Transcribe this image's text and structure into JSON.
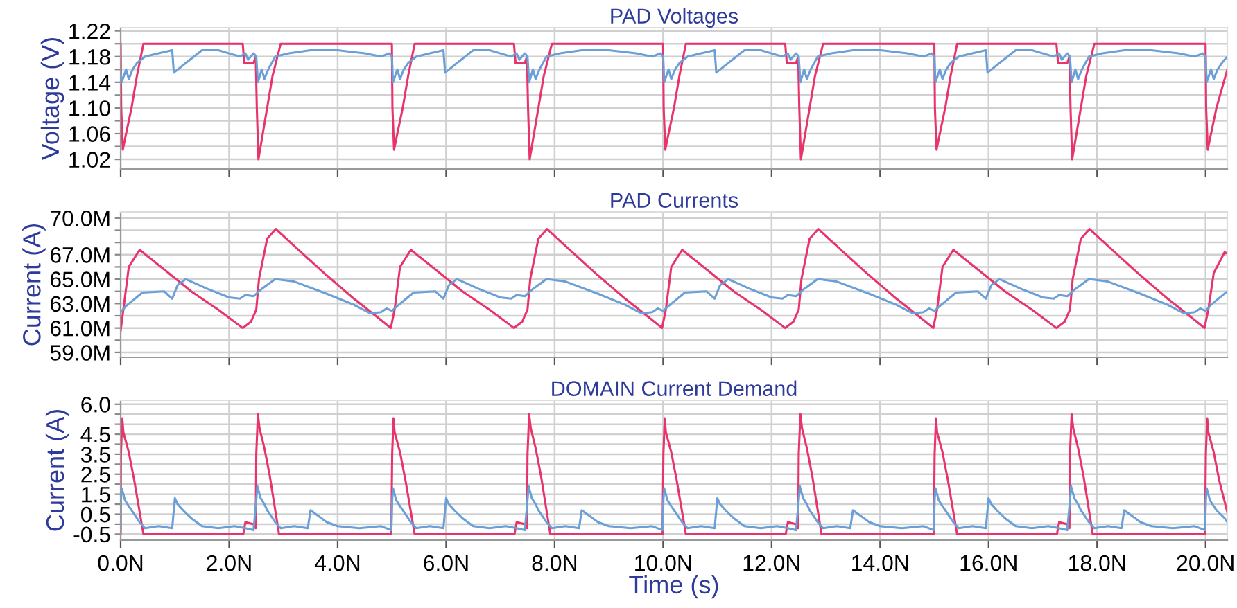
{
  "chart_data": [
    {
      "type": "line",
      "title": "PAD Voltages",
      "ylabel": "Voltage (V)",
      "xlim": [
        0,
        20.4
      ],
      "ylim": [
        1.005,
        1.225
      ],
      "grid": true,
      "tick_labels": "y",
      "line_style": "solid",
      "xticks": [
        {
          "value": 0,
          "label": null
        },
        {
          "value": 2,
          "label": null
        },
        {
          "value": 4,
          "label": null
        },
        {
          "value": 6,
          "label": null
        },
        {
          "value": 8,
          "label": null
        },
        {
          "value": 10,
          "label": null
        },
        {
          "value": 12,
          "label": null
        },
        {
          "value": 14,
          "label": null
        },
        {
          "value": 16,
          "label": null
        },
        {
          "value": 18,
          "label": null
        },
        {
          "value": 20,
          "label": null
        }
      ],
      "yticks": [
        {
          "value": 1.02,
          "label": "1.02"
        },
        {
          "value": 1.04,
          "label": null
        },
        {
          "value": 1.06,
          "label": "1.06"
        },
        {
          "value": 1.08,
          "label": null
        },
        {
          "value": 1.1,
          "label": "1.10"
        },
        {
          "value": 1.12,
          "label": null
        },
        {
          "value": 1.14,
          "label": "1.14"
        },
        {
          "value": 1.16,
          "label": null
        },
        {
          "value": 1.18,
          "label": "1.18"
        },
        {
          "value": 1.2,
          "label": null
        },
        {
          "value": 1.22,
          "label": "1.22"
        }
      ],
      "series": [
        {
          "color": "#e8336b",
          "x": [
            0,
            0.01,
            0.04,
            0.1,
            0.2,
            0.3,
            0.42,
            2.25,
            2.28,
            2.45,
            2.49,
            2.51,
            2.54,
            2.6,
            2.7,
            2.8,
            2.95,
            4.98,
            5,
            5.01,
            5.04,
            5.1,
            5.2,
            5.3,
            5.42,
            7.25,
            7.28,
            7.45,
            7.49,
            7.51,
            7.54,
            7.6,
            7.7,
            7.8,
            7.95,
            9.98,
            10,
            10.01,
            10.04,
            10.1,
            10.2,
            10.3,
            10.42,
            12.25,
            12.28,
            12.45,
            12.49,
            12.51,
            12.54,
            12.6,
            12.7,
            12.8,
            12.95,
            14.98,
            15,
            15.01,
            15.04,
            15.1,
            15.2,
            15.3,
            15.42,
            17.25,
            17.28,
            17.45,
            17.49,
            17.51,
            17.54,
            17.6,
            17.7,
            17.8,
            17.95,
            19.98,
            20,
            20.01,
            20.04,
            20.1,
            20.2,
            20.3,
            20.4
          ],
          "values": [
            1.2,
            1.1,
            1.035,
            1.06,
            1.1,
            1.15,
            1.2,
            1.2,
            1.17,
            1.17,
            1.18,
            1.1,
            1.02,
            1.05,
            1.1,
            1.15,
            1.2,
            1.2,
            1.2,
            1.1,
            1.035,
            1.06,
            1.1,
            1.15,
            1.2,
            1.2,
            1.17,
            1.17,
            1.18,
            1.1,
            1.02,
            1.05,
            1.1,
            1.15,
            1.2,
            1.2,
            1.2,
            1.1,
            1.035,
            1.06,
            1.1,
            1.15,
            1.2,
            1.2,
            1.17,
            1.17,
            1.18,
            1.1,
            1.02,
            1.05,
            1.1,
            1.15,
            1.2,
            1.2,
            1.2,
            1.1,
            1.035,
            1.06,
            1.1,
            1.15,
            1.2,
            1.2,
            1.17,
            1.17,
            1.18,
            1.1,
            1.02,
            1.05,
            1.1,
            1.15,
            1.2,
            1.2,
            1.2,
            1.1,
            1.035,
            1.06,
            1.1,
            1.13,
            1.16
          ]
        },
        {
          "color": "#6a9fd8",
          "x": [
            0,
            0.02,
            0.1,
            0.15,
            0.22,
            0.3,
            0.45,
            0.7,
            0.95,
            0.98,
            1.2,
            1.5,
            1.8,
            2.0,
            2.2,
            2.3,
            2.35,
            2.45,
            2.5,
            2.53,
            2.6,
            2.65,
            2.72,
            2.85,
            3.1,
            3.5,
            4.0,
            4.5,
            4.8,
            4.95,
            5,
            5.02,
            5.1,
            5.15,
            5.22,
            5.3,
            5.45,
            5.7,
            5.95,
            5.98,
            6.2,
            6.5,
            6.8,
            7.0,
            7.2,
            7.3,
            7.35,
            7.45,
            7.5,
            7.53,
            7.6,
            7.65,
            7.72,
            7.85,
            8.1,
            8.5,
            9.0,
            9.5,
            9.8,
            9.95,
            10,
            10.02,
            10.1,
            10.15,
            10.22,
            10.3,
            10.45,
            10.7,
            10.95,
            10.98,
            11.2,
            11.5,
            11.8,
            12.0,
            12.2,
            12.3,
            12.35,
            12.45,
            12.5,
            12.53,
            12.6,
            12.65,
            12.72,
            12.85,
            13.1,
            13.5,
            14.0,
            14.5,
            14.8,
            14.95,
            15,
            15.02,
            15.1,
            15.15,
            15.22,
            15.3,
            15.45,
            15.7,
            15.95,
            15.98,
            16.2,
            16.5,
            16.8,
            17.0,
            17.2,
            17.3,
            17.35,
            17.45,
            17.5,
            17.53,
            17.6,
            17.65,
            17.72,
            17.85,
            18.1,
            18.5,
            19.0,
            19.5,
            19.8,
            19.95,
            20,
            20.02,
            20.1,
            20.15,
            20.22,
            20.3,
            20.4
          ],
          "values": [
            1.16,
            1.14,
            1.16,
            1.145,
            1.16,
            1.17,
            1.18,
            1.185,
            1.19,
            1.155,
            1.17,
            1.19,
            1.19,
            1.185,
            1.18,
            1.185,
            1.175,
            1.185,
            1.18,
            1.14,
            1.16,
            1.145,
            1.16,
            1.18,
            1.185,
            1.19,
            1.19,
            1.185,
            1.18,
            1.185,
            1.18,
            1.14,
            1.16,
            1.145,
            1.16,
            1.17,
            1.18,
            1.185,
            1.19,
            1.155,
            1.17,
            1.19,
            1.19,
            1.185,
            1.18,
            1.185,
            1.175,
            1.185,
            1.18,
            1.14,
            1.16,
            1.145,
            1.16,
            1.18,
            1.185,
            1.19,
            1.19,
            1.185,
            1.18,
            1.185,
            1.18,
            1.14,
            1.16,
            1.145,
            1.16,
            1.17,
            1.18,
            1.185,
            1.19,
            1.155,
            1.17,
            1.19,
            1.19,
            1.185,
            1.18,
            1.185,
            1.175,
            1.185,
            1.18,
            1.14,
            1.16,
            1.145,
            1.16,
            1.18,
            1.185,
            1.19,
            1.19,
            1.185,
            1.18,
            1.185,
            1.18,
            1.14,
            1.16,
            1.145,
            1.16,
            1.17,
            1.18,
            1.185,
            1.19,
            1.155,
            1.17,
            1.19,
            1.19,
            1.185,
            1.18,
            1.185,
            1.175,
            1.185,
            1.18,
            1.14,
            1.16,
            1.145,
            1.16,
            1.18,
            1.185,
            1.19,
            1.19,
            1.185,
            1.18,
            1.185,
            1.18,
            1.14,
            1.16,
            1.145,
            1.16,
            1.17,
            1.18
          ]
        }
      ]
    },
    {
      "type": "line",
      "title": "PAD Currents",
      "ylabel": "Current (A)",
      "xlim": [
        0,
        20.4
      ],
      "ylim": [
        58.6,
        70.5
      ],
      "grid": true,
      "tick_labels": "y",
      "line_style": "solid",
      "xticks": [
        {
          "value": 0,
          "label": null
        },
        {
          "value": 2,
          "label": null
        },
        {
          "value": 4,
          "label": null
        },
        {
          "value": 6,
          "label": null
        },
        {
          "value": 8,
          "label": null
        },
        {
          "value": 10,
          "label": null
        },
        {
          "value": 12,
          "label": null
        },
        {
          "value": 14,
          "label": null
        },
        {
          "value": 16,
          "label": null
        },
        {
          "value": 18,
          "label": null
        },
        {
          "value": 20,
          "label": null
        }
      ],
      "yticks": [
        {
          "value": 59,
          "label": "59.0M"
        },
        {
          "value": 60,
          "label": null
        },
        {
          "value": 61,
          "label": "61.0M"
        },
        {
          "value": 62,
          "label": null
        },
        {
          "value": 63,
          "label": "63.0M"
        },
        {
          "value": 64,
          "label": null
        },
        {
          "value": 65,
          "label": "65.0M"
        },
        {
          "value": 66,
          "label": null
        },
        {
          "value": 67,
          "label": "67.0M"
        },
        {
          "value": 68,
          "label": null
        },
        {
          "value": 69,
          "label": null
        },
        {
          "value": 70,
          "label": "70.0M"
        }
      ],
      "series": [
        {
          "color": "#e8336b",
          "x": [
            0,
            0.05,
            0.15,
            0.35,
            0.8,
            1.3,
            1.8,
            2.25,
            2.4,
            2.5,
            2.55,
            2.7,
            2.86,
            3.3,
            3.8,
            4.3,
            4.7,
            4.98,
            5.05,
            5.15,
            5.35,
            5.8,
            6.3,
            6.8,
            7.25,
            7.4,
            7.5,
            7.55,
            7.7,
            7.86,
            8.3,
            8.8,
            9.3,
            9.7,
            9.98,
            10.05,
            10.15,
            10.35,
            10.8,
            11.3,
            11.8,
            12.25,
            12.4,
            12.5,
            12.55,
            12.7,
            12.86,
            13.3,
            13.8,
            14.3,
            14.7,
            14.98,
            15.05,
            15.15,
            15.35,
            15.8,
            16.3,
            16.8,
            17.25,
            17.4,
            17.5,
            17.55,
            17.7,
            17.86,
            18.3,
            18.8,
            19.3,
            19.7,
            19.98,
            20.05,
            20.15,
            20.35,
            20.4
          ],
          "values": [
            60.8,
            62.5,
            66.0,
            67.4,
            65.8,
            64.0,
            62.5,
            61.0,
            61.5,
            62.5,
            65.0,
            68.3,
            69.1,
            67.3,
            65.3,
            63.4,
            62.0,
            61.0,
            62.5,
            66.0,
            67.4,
            65.8,
            64.0,
            62.5,
            61.0,
            61.5,
            62.5,
            65.0,
            68.3,
            69.1,
            67.3,
            65.3,
            63.4,
            62.0,
            61.0,
            62.5,
            66.0,
            67.4,
            65.8,
            64.0,
            62.5,
            61.0,
            61.5,
            62.5,
            65.0,
            68.3,
            69.1,
            67.3,
            65.3,
            63.4,
            62.0,
            61.0,
            62.5,
            66.0,
            67.4,
            65.8,
            64.0,
            62.5,
            61.0,
            61.5,
            62.5,
            65.0,
            68.3,
            69.1,
            67.3,
            65.3,
            63.4,
            62.0,
            61.0,
            62.5,
            65.5,
            67.2,
            67.1
          ]
        },
        {
          "color": "#6a9fd8",
          "x": [
            0,
            0.1,
            0.4,
            0.8,
            0.95,
            1.05,
            1.2,
            1.6,
            2.0,
            2.2,
            2.3,
            2.45,
            2.6,
            2.85,
            3.2,
            3.8,
            4.3,
            4.6,
            4.8,
            4.9,
            5,
            5.1,
            5.4,
            5.8,
            5.95,
            6.05,
            6.2,
            6.6,
            7.0,
            7.2,
            7.3,
            7.45,
            7.6,
            7.85,
            8.2,
            8.8,
            9.3,
            9.6,
            9.8,
            9.9,
            10,
            10.1,
            10.4,
            10.8,
            10.95,
            11.05,
            11.2,
            11.6,
            12.0,
            12.2,
            12.3,
            12.45,
            12.6,
            12.85,
            13.2,
            13.8,
            14.3,
            14.6,
            14.8,
            14.9,
            15,
            15.1,
            15.4,
            15.8,
            15.95,
            16.05,
            16.2,
            16.6,
            17.0,
            17.2,
            17.3,
            17.45,
            17.6,
            17.85,
            18.2,
            18.8,
            19.3,
            19.6,
            19.8,
            19.9,
            20,
            20.1,
            20.4
          ],
          "values": [
            62.3,
            62.8,
            63.9,
            64.0,
            63.4,
            64.5,
            65.0,
            64.2,
            63.5,
            63.4,
            63.7,
            63.6,
            64.2,
            65.0,
            64.8,
            63.8,
            62.9,
            62.2,
            62.3,
            62.6,
            62.4,
            62.8,
            63.9,
            64.0,
            63.4,
            64.5,
            65.0,
            64.2,
            63.5,
            63.4,
            63.7,
            63.6,
            64.2,
            65.0,
            64.8,
            63.8,
            62.9,
            62.2,
            62.3,
            62.6,
            62.4,
            62.8,
            63.9,
            64.0,
            63.4,
            64.5,
            65.0,
            64.2,
            63.5,
            63.4,
            63.7,
            63.6,
            64.2,
            65.0,
            64.8,
            63.8,
            62.9,
            62.2,
            62.3,
            62.6,
            62.4,
            62.8,
            63.9,
            64.0,
            63.4,
            64.5,
            65.0,
            64.2,
            63.5,
            63.4,
            63.7,
            63.6,
            64.2,
            65.0,
            64.8,
            63.8,
            62.9,
            62.2,
            62.3,
            62.6,
            62.4,
            62.9,
            64.0
          ]
        }
      ]
    },
    {
      "type": "line",
      "title": "DOMAIN Current Demand",
      "ylabel": "Current (A)",
      "xlabel": "Time (s)",
      "xlim": [
        0,
        20.4
      ],
      "ylim": [
        -0.8,
        6.2
      ],
      "grid": true,
      "line_style": "solid",
      "xticks": [
        {
          "value": 0,
          "label": "0.0N"
        },
        {
          "value": 2,
          "label": "2.0N"
        },
        {
          "value": 4,
          "label": "4.0N"
        },
        {
          "value": 6,
          "label": "6.0N"
        },
        {
          "value": 8,
          "label": "8.0N"
        },
        {
          "value": 10,
          "label": "10.0N"
        },
        {
          "value": 12,
          "label": "12.0N"
        },
        {
          "value": 14,
          "label": "14.0N"
        },
        {
          "value": 16,
          "label": "16.0N"
        },
        {
          "value": 18,
          "label": "18.0N"
        },
        {
          "value": 20,
          "label": "20.0N"
        }
      ],
      "yticks": [
        {
          "value": -0.5,
          "label": "-0.5"
        },
        {
          "value": 0,
          "label": null
        },
        {
          "value": 0.5,
          "label": "0.5"
        },
        {
          "value": 1,
          "label": null
        },
        {
          "value": 1.5,
          "label": "1.5"
        },
        {
          "value": 2,
          "label": null
        },
        {
          "value": 2.5,
          "label": "2.5"
        },
        {
          "value": 3,
          "label": null
        },
        {
          "value": 3.5,
          "label": "3.5"
        },
        {
          "value": 4,
          "label": null
        },
        {
          "value": 4.5,
          "label": "4.5"
        },
        {
          "value": 5,
          "label": null
        },
        {
          "value": 5.5,
          "label": null
        },
        {
          "value": 6,
          "label": "6.0"
        }
      ],
      "series": [
        {
          "color": "#e8336b",
          "x": [
            0,
            0.005,
            0.03,
            0.05,
            0.15,
            0.25,
            0.42,
            2.26,
            2.3,
            2.45,
            2.49,
            2.5,
            2.53,
            2.56,
            2.65,
            2.75,
            2.92,
            4.99,
            5.005,
            5.03,
            5.05,
            5.15,
            5.25,
            5.42,
            7.26,
            7.3,
            7.45,
            7.49,
            7.5,
            7.53,
            7.56,
            7.65,
            7.75,
            7.92,
            9.99,
            10.005,
            10.03,
            10.05,
            10.15,
            10.25,
            10.42,
            12.26,
            12.3,
            12.45,
            12.49,
            12.5,
            12.53,
            12.56,
            12.65,
            12.75,
            12.92,
            14.99,
            15.005,
            15.03,
            15.05,
            15.15,
            15.25,
            15.42,
            17.26,
            17.3,
            17.45,
            17.49,
            17.5,
            17.53,
            17.56,
            17.65,
            17.75,
            17.92,
            19.99,
            20.005,
            20.03,
            20.05,
            20.15,
            20.25,
            20.4
          ],
          "values": [
            -0.5,
            3.5,
            5.3,
            4.6,
            3.6,
            2.2,
            -0.5,
            -0.5,
            0.1,
            0.0,
            -0.2,
            3.5,
            5.5,
            4.8,
            3.8,
            2.4,
            -0.5,
            -0.5,
            3.5,
            5.3,
            4.6,
            3.6,
            2.2,
            -0.5,
            -0.5,
            0.1,
            0.0,
            -0.2,
            3.5,
            5.5,
            4.8,
            3.8,
            2.4,
            -0.5,
            -0.5,
            3.5,
            5.3,
            4.6,
            3.6,
            2.2,
            -0.5,
            -0.5,
            0.1,
            0.0,
            -0.2,
            3.5,
            5.5,
            4.8,
            3.8,
            2.4,
            -0.5,
            -0.5,
            3.5,
            5.3,
            4.6,
            3.6,
            2.2,
            -0.5,
            -0.5,
            0.1,
            0.0,
            -0.2,
            3.5,
            5.5,
            4.8,
            3.8,
            2.4,
            -0.5,
            -0.5,
            3.5,
            5.3,
            4.6,
            3.6,
            2.2,
            0.6
          ]
        },
        {
          "color": "#6a9fd8",
          "x": [
            0,
            0.005,
            0.02,
            0.08,
            0.15,
            0.2,
            0.35,
            0.45,
            0.7,
            0.95,
            1.0,
            1.05,
            1.15,
            1.3,
            1.5,
            1.8,
            2.1,
            2.3,
            2.45,
            2.5,
            2.52,
            2.58,
            2.65,
            2.7,
            2.85,
            2.95,
            3.2,
            3.45,
            3.5,
            3.6,
            3.8,
            4.0,
            4.4,
            4.8,
            4.99,
            5.005,
            5.02,
            5.08,
            5.15,
            5.2,
            5.35,
            5.45,
            5.7,
            5.95,
            6.0,
            6.05,
            6.15,
            6.3,
            6.5,
            6.8,
            7.1,
            7.3,
            7.45,
            7.5,
            7.52,
            7.58,
            7.65,
            7.7,
            7.85,
            7.95,
            8.2,
            8.45,
            8.5,
            8.6,
            8.8,
            9.0,
            9.4,
            9.8,
            9.99,
            10.005,
            10.02,
            10.08,
            10.15,
            10.2,
            10.35,
            10.45,
            10.7,
            10.95,
            11.0,
            11.05,
            11.15,
            11.3,
            11.5,
            11.8,
            12.1,
            12.3,
            12.45,
            12.5,
            12.52,
            12.58,
            12.65,
            12.7,
            12.85,
            12.95,
            13.2,
            13.45,
            13.5,
            13.6,
            13.8,
            14.0,
            14.4,
            14.8,
            14.99,
            15.005,
            15.02,
            15.08,
            15.15,
            15.2,
            15.35,
            15.45,
            15.7,
            15.95,
            16.0,
            16.05,
            16.15,
            16.3,
            16.5,
            16.8,
            17.1,
            17.3,
            17.45,
            17.5,
            17.52,
            17.58,
            17.65,
            17.7,
            17.85,
            17.95,
            18.2,
            18.45,
            18.5,
            18.6,
            18.8,
            19.0,
            19.4,
            19.8,
            19.99,
            20.005,
            20.02,
            20.08,
            20.15,
            20.2,
            20.35,
            20.4
          ],
          "values": [
            -0.3,
            1.2,
            1.8,
            1.2,
            0.9,
            0.7,
            0.1,
            -0.2,
            -0.1,
            -0.2,
            1.3,
            1.0,
            0.7,
            0.3,
            -0.1,
            -0.2,
            -0.1,
            -0.2,
            -0.3,
            1.2,
            1.9,
            1.3,
            1.0,
            0.7,
            0.1,
            -0.2,
            -0.1,
            -0.2,
            0.7,
            0.5,
            0.1,
            -0.1,
            -0.2,
            -0.1,
            -0.3,
            1.2,
            1.8,
            1.2,
            0.9,
            0.7,
            0.1,
            -0.2,
            -0.1,
            -0.2,
            1.3,
            1.0,
            0.7,
            0.3,
            -0.1,
            -0.2,
            -0.1,
            -0.2,
            -0.3,
            1.2,
            1.9,
            1.3,
            1.0,
            0.7,
            0.1,
            -0.2,
            -0.1,
            -0.2,
            0.7,
            0.5,
            0.1,
            -0.1,
            -0.2,
            -0.1,
            -0.3,
            1.2,
            1.8,
            1.2,
            0.9,
            0.7,
            0.1,
            -0.2,
            -0.1,
            -0.2,
            1.3,
            1.0,
            0.7,
            0.3,
            -0.1,
            -0.2,
            -0.1,
            -0.2,
            -0.3,
            1.2,
            1.9,
            1.3,
            1.0,
            0.7,
            0.1,
            -0.2,
            -0.1,
            -0.2,
            0.7,
            0.5,
            0.1,
            -0.1,
            -0.2,
            -0.1,
            -0.3,
            1.2,
            1.8,
            1.2,
            0.9,
            0.7,
            0.1,
            -0.2,
            -0.1,
            -0.2,
            1.3,
            1.0,
            0.7,
            0.3,
            -0.1,
            -0.2,
            -0.1,
            -0.2,
            -0.3,
            1.2,
            1.9,
            1.3,
            1.0,
            0.7,
            0.1,
            -0.2,
            -0.1,
            -0.2,
            0.7,
            0.5,
            0.1,
            -0.1,
            -0.2,
            -0.1,
            -0.3,
            1.2,
            1.8,
            1.2,
            0.9,
            0.7,
            0.3,
            0.1
          ]
        }
      ]
    }
  ]
}
